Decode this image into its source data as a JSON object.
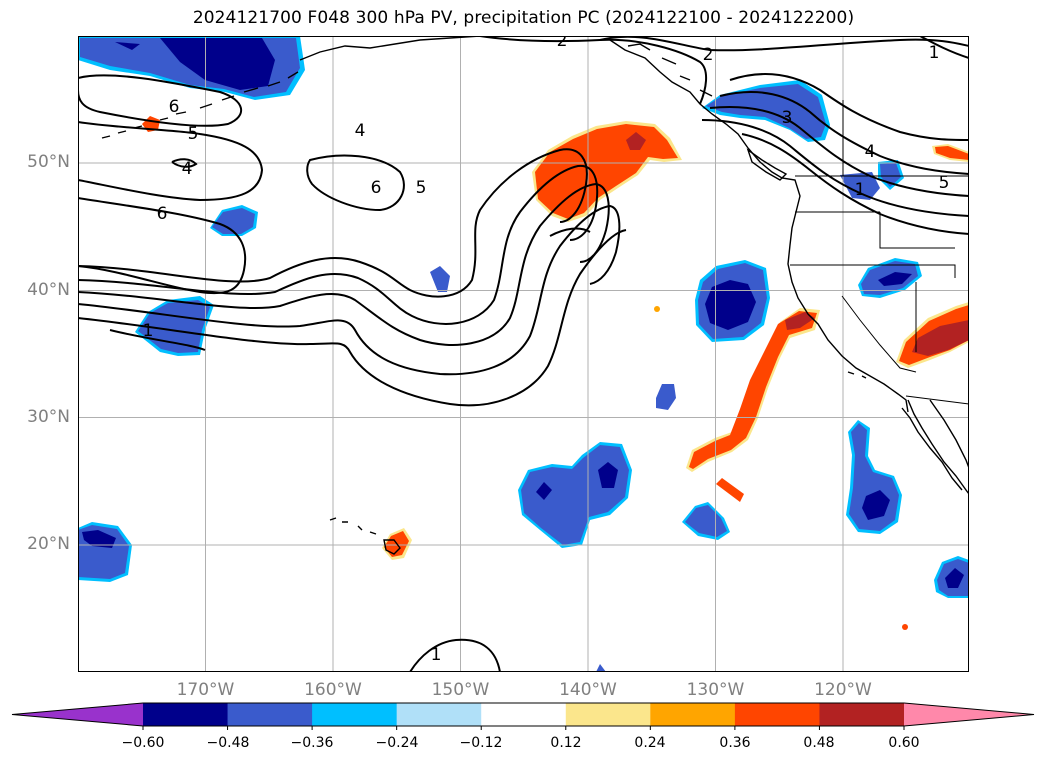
{
  "title": "2024121700 F048 300 hPa PV, precipitation PC (2024122100 - 2024122200)",
  "lon_labels": [
    "170°W",
    "160°W",
    "150°W",
    "140°W",
    "130°W",
    "120°W"
  ],
  "lat_labels": [
    "50°N",
    "40°N",
    "30°N",
    "20°N"
  ],
  "contour_labels": [
    "2",
    "2",
    "1",
    "6",
    "5",
    "4",
    "6",
    "4",
    "5",
    "6",
    "1",
    "3",
    "4",
    "5",
    "1",
    "1"
  ],
  "colorbar": {
    "colors": [
      "#9932cc",
      "#00008b",
      "#3a5bcc",
      "#00bfff",
      "#b0e0f8",
      "#ffffff",
      "#fbe68c",
      "#ffa500",
      "#ff4500",
      "#b22222",
      "#ff88aa"
    ],
    "tick_labels": [
      "−0.60",
      "−0.48",
      "−0.36",
      "−0.24",
      "−0.12",
      "0.12",
      "0.24",
      "0.36",
      "0.48",
      "0.60"
    ]
  },
  "colors": {
    "neg_dark": "#00008b",
    "neg_mid": "#3a5bcc",
    "neg_light": "#00bfff",
    "pos_light": "#fbe68c",
    "pos_mid": "#ff4500",
    "pos_dark": "#b22222",
    "grid": "#b0b0b0"
  }
}
